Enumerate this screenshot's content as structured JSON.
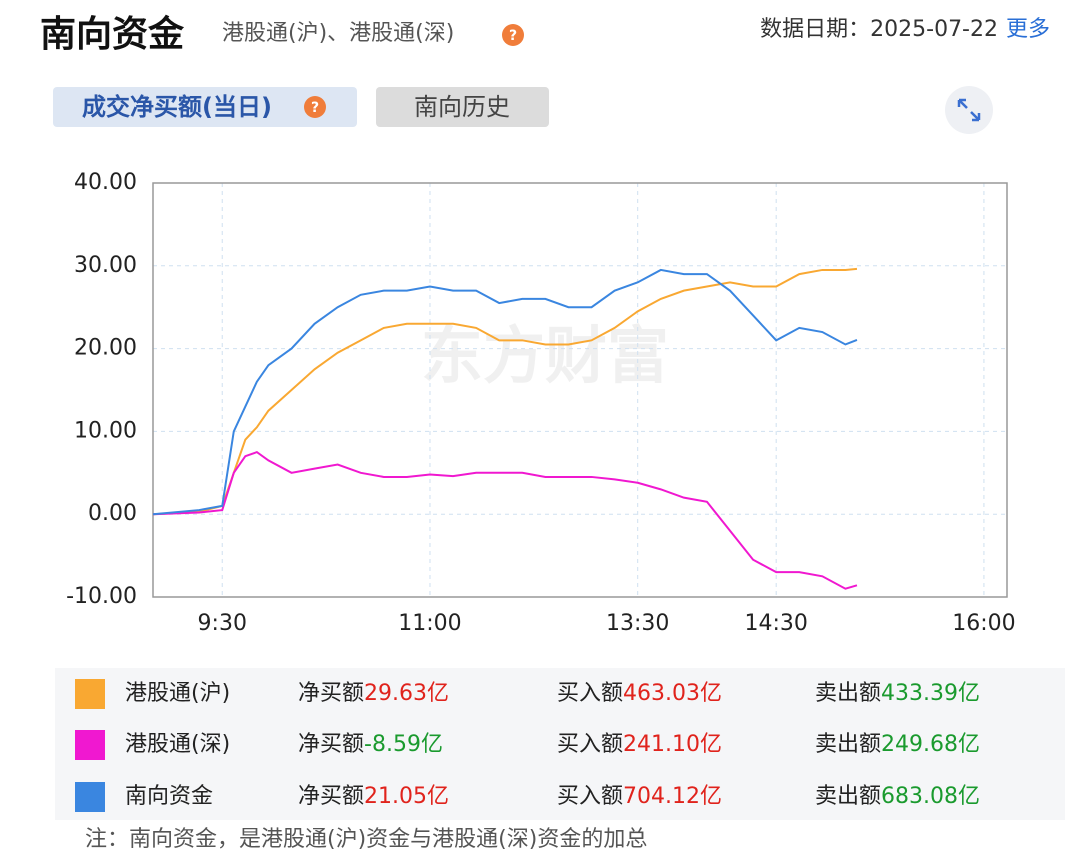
{
  "header": {
    "title": "南向资金",
    "subtitle": "港股通(沪)、港股通(深)",
    "date": "数据日期：2025-07-22",
    "more": "更多"
  },
  "tabs": [
    "成交净买额(当日)",
    "南向历史"
  ],
  "chart_data": {
    "type": "line",
    "watermark": "东方财富",
    "x": [
      0,
      20,
      30,
      35,
      40,
      45,
      50,
      60,
      70,
      80,
      90,
      100,
      110,
      120,
      130,
      140,
      150,
      160,
      170,
      180,
      190,
      200,
      210,
      220,
      230,
      240,
      250,
      260,
      270,
      280,
      290,
      300,
      305
    ],
    "xlim": [
      0,
      370
    ],
    "xticks": [
      {
        "value": 30,
        "label": "9:30"
      },
      {
        "value": 120,
        "label": "11:00"
      },
      {
        "value": 210,
        "label": "13:30"
      },
      {
        "value": 270,
        "label": "14:30"
      },
      {
        "value": 360,
        "label": "16:00"
      }
    ],
    "ylim": [
      -10,
      40
    ],
    "yticks": [
      {
        "value": 40,
        "label": "40.00"
      },
      {
        "value": 30,
        "label": "30.00"
      },
      {
        "value": 20,
        "label": "20.00"
      },
      {
        "value": 10,
        "label": "10.00"
      },
      {
        "value": 0,
        "label": "0.00"
      },
      {
        "value": -10,
        "label": "-10.00"
      }
    ],
    "grid": true,
    "series": [
      {
        "name": "港股通(沪)",
        "color": "#f9a832",
        "values": [
          0,
          0.3,
          1,
          5,
          9,
          10.5,
          12.5,
          15,
          17.5,
          19.5,
          21,
          22.5,
          23,
          23,
          23,
          22.5,
          21,
          21,
          20.5,
          20.5,
          21,
          22.5,
          24.5,
          26,
          27,
          27.5,
          28,
          27.5,
          27.5,
          29,
          29.5,
          29.5,
          29.63
        ]
      },
      {
        "name": "港股通(深)",
        "color": "#f018d0",
        "values": [
          0,
          0.2,
          0.5,
          5,
          7,
          7.5,
          6.5,
          5,
          5.5,
          6,
          5,
          4.5,
          4.5,
          4.8,
          4.6,
          5,
          5,
          5,
          4.5,
          4.5,
          4.5,
          4.2,
          3.8,
          3,
          2,
          1.5,
          -2,
          -5.5,
          -7,
          -7,
          -7.5,
          -9,
          -8.59
        ]
      },
      {
        "name": "南向资金",
        "color": "#3a86e0",
        "values": [
          0,
          0.5,
          1,
          10,
          13,
          16,
          18,
          20,
          23,
          25,
          26.5,
          27,
          27,
          27.5,
          27,
          27,
          25.5,
          26,
          26,
          25,
          25,
          27,
          28,
          29.5,
          29,
          29,
          27,
          24,
          21,
          22.5,
          22,
          20.5,
          21.05
        ]
      }
    ]
  },
  "summary": {
    "columns": [
      "净买额",
      "买入额",
      "卖出额"
    ],
    "rows": [
      [
        "29.63亿",
        "463.03亿",
        "433.39亿"
      ],
      [
        "-8.59亿",
        "241.10亿",
        "249.68亿"
      ],
      [
        "21.05亿",
        "704.12亿",
        "683.08亿"
      ]
    ]
  },
  "note": "注：南向资金，是港股通(沪)资金与港股通(深)资金的加总"
}
